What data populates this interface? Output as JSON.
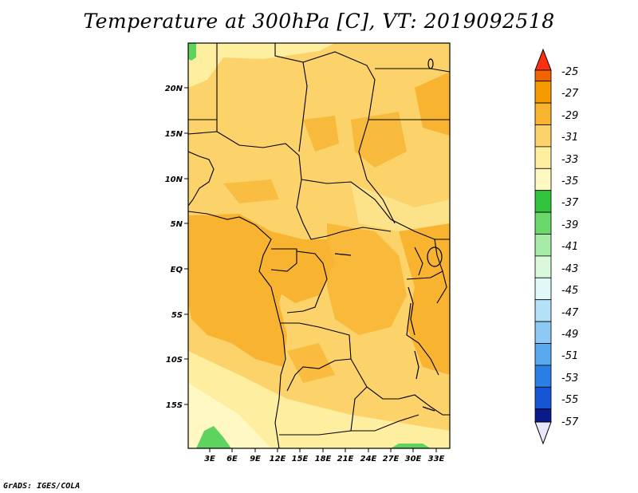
{
  "title": "Temperature at 300hPa [C], VT: 2019092518",
  "footer": "GrADS: IGES/COLA",
  "map": {
    "lon_labels": [
      "3E",
      "6E",
      "9E",
      "12E",
      "15E",
      "18E",
      "21E",
      "24E",
      "27E",
      "30E",
      "33E"
    ],
    "lat_labels": [
      "20N",
      "15N",
      "10N",
      "5N",
      "EQ",
      "5S",
      "10S",
      "15S"
    ]
  },
  "colorbar": {
    "labels": [
      "-25",
      "-27",
      "-29",
      "-31",
      "-33",
      "-35",
      "-37",
      "-39",
      "-41",
      "-43",
      "-45",
      "-47",
      "-49",
      "-51",
      "-53",
      "-55",
      "-57"
    ],
    "colors": [
      "#ff3010",
      "#f26400",
      "#f59a00",
      "#f8b431",
      "#fbd36a",
      "#fdeea0",
      "#fff8c2",
      "#32c43c",
      "#6ad86a",
      "#a6eca6",
      "#daf8da",
      "#e0f8f8",
      "#b4e0f8",
      "#8ccaf5",
      "#5aa8ee",
      "#2b7ee4",
      "#1656d4",
      "#0c36b4",
      "#0a1a8a"
    ]
  },
  "palette": {
    "ocean_bg": "#fdeea0",
    "land_base": "#fbd36a",
    "warm_patch": "#f8b431",
    "cool_patch": "#fff8c2",
    "green_patch": "#5ed45e"
  }
}
